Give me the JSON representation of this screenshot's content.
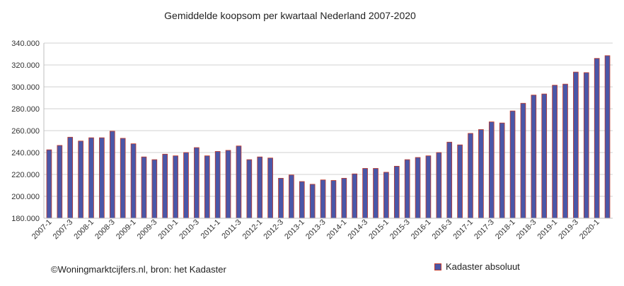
{
  "chart_data": {
    "type": "bar",
    "title": "Gemiddelde koopsom per kwartaal Nederland 2007-2020",
    "xlabel": "",
    "ylabel": "",
    "ylim": [
      180000,
      340000
    ],
    "yticks": [
      "180.000",
      "200.000",
      "220.000",
      "240.000",
      "260.000",
      "280.000",
      "300.000",
      "320.000",
      "340.000"
    ],
    "categories": [
      "2007-1",
      "2007-2",
      "2007-3",
      "2007-4",
      "2008-1",
      "2008-2",
      "2008-3",
      "2008-4",
      "2009-1",
      "2009-2",
      "2009-3",
      "2009-4",
      "2010-1",
      "2010-2",
      "2010-3",
      "2010-4",
      "2011-1",
      "2011-2",
      "2011-3",
      "2011-4",
      "2012-1",
      "2012-2",
      "2012-3",
      "2012-4",
      "2013-1",
      "2013-2",
      "2013-3",
      "2013-4",
      "2014-1",
      "2014-2",
      "2014-3",
      "2014-4",
      "2015-1",
      "2015-2",
      "2015-3",
      "2015-4",
      "2016-1",
      "2016-2",
      "2016-3",
      "2016-4",
      "2017-1",
      "2017-2",
      "2017-3",
      "2017-4",
      "2018-1",
      "2018-2",
      "2018-3",
      "2018-4",
      "2019-1",
      "2019-2",
      "2019-3",
      "2019-4",
      "2020-1",
      "2020-2"
    ],
    "visible_tick_labels": [
      "2007-1",
      "2007-3",
      "2008-1",
      "2008-3",
      "2009-1",
      "2009-3",
      "2010-1",
      "2010-3",
      "2011-1",
      "2011-3",
      "2012-1",
      "2012-3",
      "2013-1",
      "2013-3",
      "2014-1",
      "2014-3",
      "2015-1",
      "2015-3",
      "2016-1",
      "2016-3",
      "2017-1",
      "2017-3",
      "2018-1",
      "2018-3",
      "2019-1",
      "2019-3",
      "2020-1"
    ],
    "series": [
      {
        "name": "Kadaster absoluut",
        "values": [
          242500,
          246500,
          254000,
          250500,
          253500,
          253500,
          259500,
          253000,
          248000,
          236000,
          233500,
          238500,
          237000,
          240000,
          244500,
          237000,
          241000,
          242000,
          246000,
          233500,
          236000,
          235000,
          216500,
          219500,
          213500,
          211000,
          215000,
          214500,
          216500,
          220500,
          225500,
          225500,
          222000,
          227500,
          233500,
          235500,
          237000,
          240000,
          249500,
          247000,
          257500,
          261000,
          268000,
          267000,
          278000,
          285000,
          292500,
          293500,
          301500,
          302500,
          313500,
          313000,
          326000,
          328500
        ]
      }
    ],
    "legend_position": "bottom-right",
    "grid": true
  },
  "footer": {
    "source": "©Woningmarktcijfers.nl, bron: het Kadaster"
  },
  "colors": {
    "bar_fill": "#4a57a8",
    "bar_stroke": "#c0392b",
    "grid": "#d0d0d0"
  }
}
